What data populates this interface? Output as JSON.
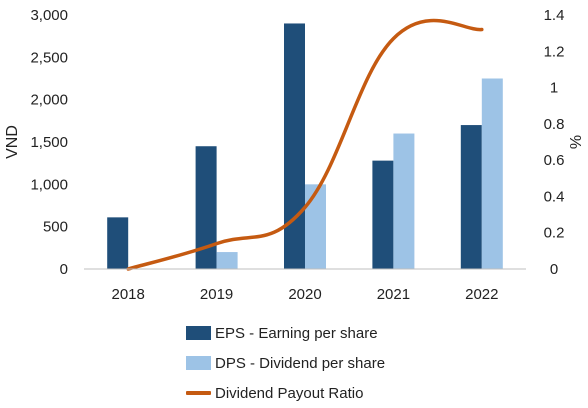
{
  "chart_data": {
    "type": "bar",
    "categories": [
      "2018",
      "2019",
      "2020",
      "2021",
      "2022"
    ],
    "series": [
      {
        "name": "EPS - Earning per share",
        "kind": "bar",
        "axis": "left",
        "color": "#1f4e79",
        "values": [
          610,
          1450,
          2900,
          1280,
          1700
        ]
      },
      {
        "name": "DPS - Dividend per share",
        "kind": "bar",
        "axis": "left",
        "color": "#9dc3e6",
        "values": [
          0,
          200,
          1000,
          1600,
          2250
        ]
      },
      {
        "name": "Dividend Payout Ratio",
        "kind": "line",
        "axis": "right",
        "color": "#c55a11",
        "values": [
          0.0,
          0.14,
          0.34,
          1.27,
          1.32
        ]
      }
    ],
    "ylabel": "VND",
    "y2label": "%",
    "ylim": [
      0,
      3000
    ],
    "y2lim": [
      0,
      1.4
    ],
    "yticks": [
      "0",
      "500",
      "1,000",
      "1,500",
      "2,000",
      "2,500",
      "3,000"
    ],
    "y2ticks": [
      "0",
      "0.2",
      "0.4",
      "0.6",
      "0.8",
      "1",
      "1.2",
      "1.4"
    ],
    "legend_position": "bottom",
    "grid": false
  }
}
